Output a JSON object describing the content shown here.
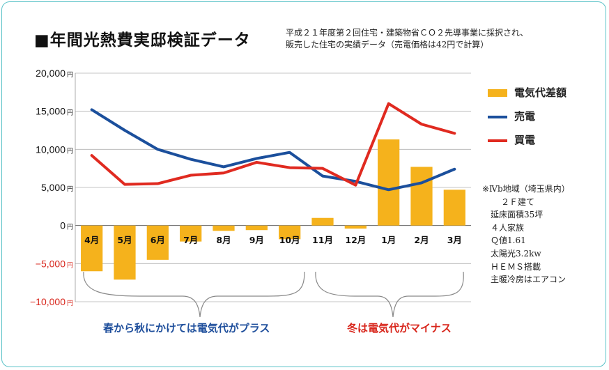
{
  "title": "■年間光熱費実邸検証データ",
  "subtitle": [
    "平成２１年度第２回住宅・建築物省ＣＯ２先導事業に採択され、",
    "販売した住宅の実績データ（売電価格は42円で計算）"
  ],
  "chart_data": {
    "type": "bar+line",
    "categories": [
      "4月",
      "5月",
      "6月",
      "7月",
      "8月",
      "9月",
      "10月",
      "11月",
      "12月",
      "1月",
      "2月",
      "3月"
    ],
    "ylim": [
      -10000,
      20000
    ],
    "yticks": [
      {
        "value": 20000,
        "label": "20,000"
      },
      {
        "value": 15000,
        "label": "15,000"
      },
      {
        "value": 10000,
        "label": "10,000"
      },
      {
        "value": 5000,
        "label": "5,000"
      },
      {
        "value": 0,
        "label": "0"
      },
      {
        "value": -5000,
        "label": "−5,000"
      },
      {
        "value": -10000,
        "label": "−10,000"
      }
    ],
    "unit": "円",
    "series": [
      {
        "name": "電気代差額",
        "kind": "bar",
        "color": "#f5b21c",
        "values": [
          -6000,
          -7100,
          -4500,
          -2100,
          -700,
          -600,
          -1800,
          1000,
          -400,
          11300,
          7700,
          4700
        ]
      },
      {
        "name": "売電",
        "kind": "line",
        "color": "#1b4f9c",
        "values": [
          15200,
          12500,
          10000,
          8700,
          7700,
          8800,
          9600,
          6500,
          5800,
          4700,
          5600,
          7400
        ]
      },
      {
        "name": "買電",
        "kind": "line",
        "color": "#e02a20",
        "values": [
          9200,
          5400,
          5500,
          6600,
          6900,
          8300,
          7600,
          7500,
          5300,
          16000,
          13300,
          12100
        ]
      }
    ],
    "grid": true,
    "legend_position": "right"
  },
  "notes": [
    "※Ⅳb地域（埼玉県内）",
    "２Ｆ建て",
    "延床面積35坪",
    "４人家族",
    "Ｑ値1.61",
    "太陽光3.2kw",
    "ＨＥＭＳ搭載",
    "主暖冷房はエアコン"
  ],
  "annotations": {
    "spring_autumn": "春から秋にかけては電気代がプラス",
    "winter": "冬は電気代がマイナス"
  },
  "colors": {
    "positive_axis": "#111111",
    "negative_axis": "#d8261c",
    "grid": "#b0b0b0",
    "spring_text": "#1f4f9c",
    "winter_text": "#d8261c",
    "bracket": "#888888",
    "frame": "#5bc2c8"
  }
}
